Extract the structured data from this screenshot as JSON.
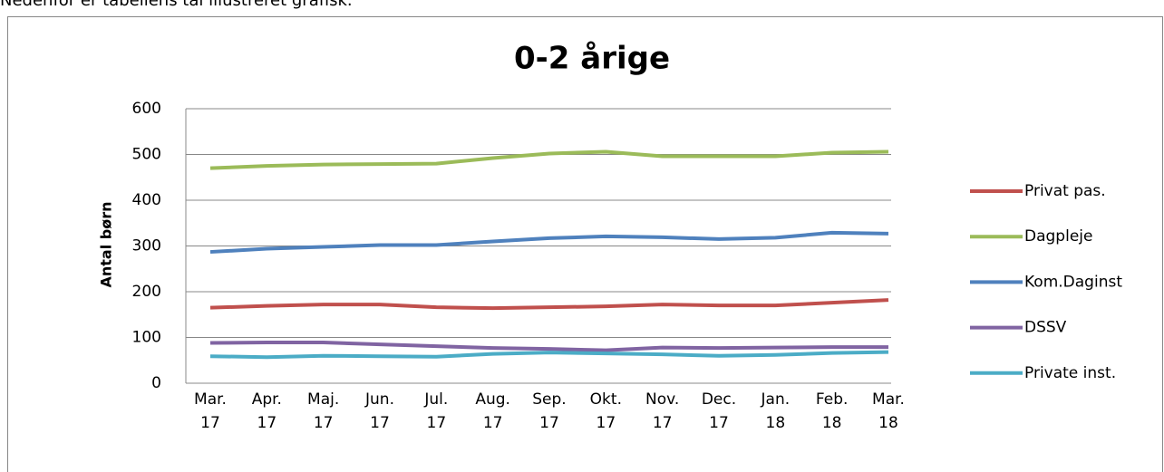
{
  "intro": "Nedenfor er tabellens tal illustreret grafisk.",
  "chart_data": {
    "type": "line",
    "title": "0-2 årige",
    "y_label": "Antal børn",
    "categories": [
      "Mar. 17",
      "Apr. 17",
      "Maj. 17",
      "Jun. 17",
      "Jul. 17",
      "Aug. 17",
      "Sep. 17",
      "Okt. 17",
      "Nov. 17",
      "Dec. 17",
      "Jan. 18",
      "Feb. 18",
      "Mar. 18"
    ],
    "series": [
      {
        "name": "Privat pas.",
        "color": "#c0504d",
        "values": [
          165,
          169,
          172,
          172,
          166,
          164,
          166,
          168,
          172,
          170,
          170,
          176,
          182
        ]
      },
      {
        "name": "Dagpleje",
        "color": "#9bbb59",
        "values": [
          470,
          475,
          478,
          479,
          480,
          492,
          502,
          506,
          496,
          496,
          496,
          504,
          506
        ]
      },
      {
        "name": "Kom.Daginst",
        "color": "#4f81bd",
        "values": [
          287,
          294,
          298,
          302,
          302,
          310,
          317,
          321,
          319,
          315,
          318,
          329,
          327
        ]
      },
      {
        "name": "DSSV",
        "color": "#8064a2",
        "values": [
          88,
          89,
          89,
          85,
          81,
          77,
          75,
          72,
          78,
          77,
          78,
          79,
          79
        ]
      },
      {
        "name": "Private inst.",
        "color": "#4bacc6",
        "values": [
          59,
          57,
          60,
          59,
          58,
          64,
          67,
          65,
          63,
          60,
          62,
          66,
          68
        ]
      }
    ],
    "ylim": [
      0,
      600
    ],
    "yticks": [
      0,
      100,
      200,
      300,
      400,
      500,
      600
    ],
    "grid": true,
    "legend": "right"
  }
}
